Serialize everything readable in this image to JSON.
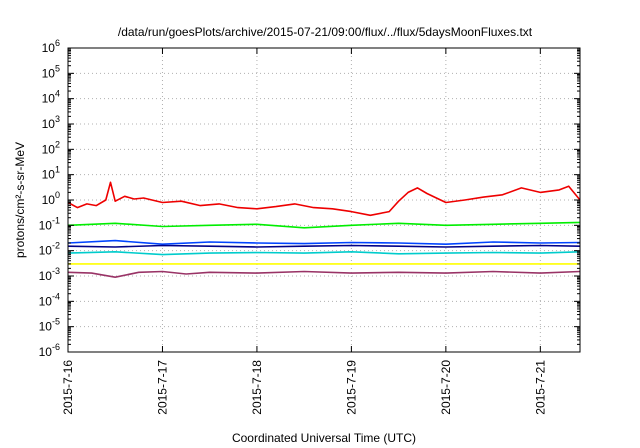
{
  "chart_data": {
    "type": "line",
    "title": "/data/run/goesPlots/archive/2015-07-21/09:00/flux/../flux/5daysMoonFluxes.txt",
    "xlabel": "Coordinated Universal Time (UTC)",
    "ylabel": "protons/cm²-s-sr-MeV",
    "yscale": "log",
    "ylim": [
      1e-06,
      1000000.0
    ],
    "xlim": [
      0,
      5.42
    ],
    "grid": true,
    "x_ticks": [
      {
        "x": 0,
        "label": "2015-7-16"
      },
      {
        "x": 1,
        "label": "2015-7-17"
      },
      {
        "x": 2,
        "label": "2015-7-18"
      },
      {
        "x": 3,
        "label": "2015-7-19"
      },
      {
        "x": 4,
        "label": "2015-7-20"
      },
      {
        "x": 5,
        "label": "2015-7-21"
      }
    ],
    "y_ticks": [
      {
        "exp": -6,
        "label": "10",
        "sup": "-6"
      },
      {
        "exp": -5,
        "label": "10",
        "sup": "-5"
      },
      {
        "exp": -4,
        "label": "10",
        "sup": "-4"
      },
      {
        "exp": -3,
        "label": "10",
        "sup": "-3"
      },
      {
        "exp": -2,
        "label": "10",
        "sup": "-2"
      },
      {
        "exp": -1,
        "label": "10",
        "sup": "-1"
      },
      {
        "exp": 0,
        "label": "10",
        "sup": "0"
      },
      {
        "exp": 1,
        "label": "10",
        "sup": "1"
      },
      {
        "exp": 2,
        "label": "10",
        "sup": "2"
      },
      {
        "exp": 3,
        "label": "10",
        "sup": "3"
      },
      {
        "exp": 4,
        "label": "10",
        "sup": "4"
      },
      {
        "exp": 5,
        "label": "10",
        "sup": "5"
      },
      {
        "exp": 6,
        "label": "10",
        "sup": "6"
      }
    ],
    "series": [
      {
        "color": "#ee0000",
        "x": [
          0,
          0.1,
          0.2,
          0.3,
          0.4,
          0.45,
          0.5,
          0.6,
          0.7,
          0.8,
          1.0,
          1.2,
          1.4,
          1.6,
          1.8,
          2.0,
          2.2,
          2.4,
          2.6,
          2.8,
          3.0,
          3.2,
          3.4,
          3.5,
          3.6,
          3.7,
          3.8,
          3.9,
          4.0,
          4.2,
          4.4,
          4.6,
          4.8,
          5.0,
          5.2,
          5.3,
          5.42
        ],
        "y": [
          0.8,
          0.5,
          0.7,
          0.6,
          1.0,
          5.0,
          0.9,
          1.4,
          1.1,
          1.2,
          0.8,
          0.9,
          0.6,
          0.7,
          0.5,
          0.45,
          0.55,
          0.7,
          0.5,
          0.45,
          0.35,
          0.25,
          0.35,
          0.9,
          2.0,
          3.0,
          1.8,
          1.2,
          0.8,
          1.0,
          1.3,
          1.6,
          3.0,
          2.0,
          2.5,
          3.5,
          1.0
        ]
      },
      {
        "color": "#00ee00",
        "x": [
          0,
          0.5,
          1.0,
          1.5,
          2.0,
          2.5,
          3.0,
          3.5,
          4.0,
          4.5,
          5.0,
          5.42
        ],
        "y": [
          0.1,
          0.12,
          0.09,
          0.1,
          0.11,
          0.08,
          0.1,
          0.12,
          0.1,
          0.11,
          0.12,
          0.13
        ]
      },
      {
        "color": "#0044ff",
        "x": [
          0,
          0.5,
          1.0,
          1.5,
          2.0,
          2.5,
          3.0,
          3.5,
          4.0,
          4.5,
          5.0,
          5.42
        ],
        "y": [
          0.02,
          0.025,
          0.018,
          0.022,
          0.02,
          0.019,
          0.021,
          0.02,
          0.018,
          0.022,
          0.02,
          0.021
        ]
      },
      {
        "color": "#000088",
        "x": [
          0,
          0.5,
          1.0,
          1.5,
          2.0,
          2.5,
          3.0,
          3.5,
          4.0,
          4.5,
          5.0,
          5.42
        ],
        "y": [
          0.015,
          0.014,
          0.016,
          0.015,
          0.014,
          0.015,
          0.016,
          0.015,
          0.014,
          0.015,
          0.016,
          0.015
        ]
      },
      {
        "color": "#00cccc",
        "x": [
          0,
          0.5,
          1.0,
          1.5,
          2.0,
          2.5,
          3.0,
          3.5,
          4.0,
          4.5,
          5.0,
          5.42
        ],
        "y": [
          0.008,
          0.009,
          0.007,
          0.008,
          0.0085,
          0.008,
          0.009,
          0.0075,
          0.008,
          0.0085,
          0.008,
          0.009
        ]
      },
      {
        "color": "#ffff00",
        "x": [
          0,
          0.5,
          1.0,
          1.5,
          2.0,
          2.5,
          3.0,
          3.5,
          4.0,
          4.5,
          5.0,
          5.42
        ],
        "y": [
          0.003,
          0.003,
          0.003,
          0.003,
          0.003,
          0.003,
          0.003,
          0.003,
          0.003,
          0.003,
          0.003,
          0.003
        ]
      },
      {
        "color": "#993366",
        "x": [
          0,
          0.25,
          0.5,
          0.75,
          1.0,
          1.25,
          1.5,
          2.0,
          2.5,
          3.0,
          3.5,
          4.0,
          4.5,
          5.0,
          5.42
        ],
        "y": [
          0.0014,
          0.0013,
          0.0009,
          0.0014,
          0.0015,
          0.0012,
          0.0014,
          0.0013,
          0.0015,
          0.0013,
          0.0014,
          0.0013,
          0.0015,
          0.0013,
          0.0015
        ]
      }
    ]
  }
}
